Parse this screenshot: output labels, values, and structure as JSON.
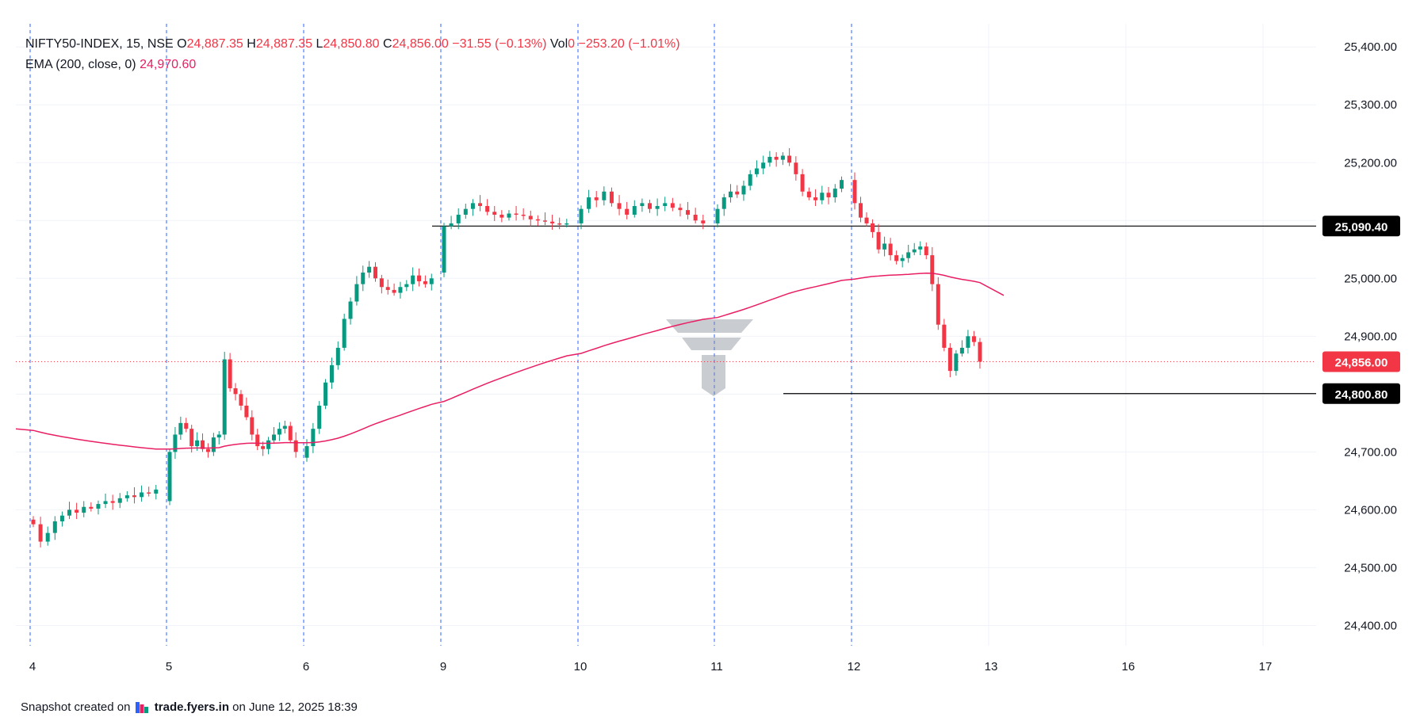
{
  "header": {
    "symbol_line": "NIFTY50-INDEX, 15, NSE",
    "open_label": "O",
    "open": "24,887.35",
    "high_label": "H",
    "high": "24,887.35",
    "low_label": "L",
    "low": "24,850.80",
    "close_label": "C",
    "close": "24,856.00",
    "change": "−31.55 (−0.13%)",
    "vol_label": "Vol",
    "vol": "0",
    "vol_change": "−253.20 (−1.01%)",
    "ema_label": "EMA (200, close, 0)",
    "ema_value": "24,970.60"
  },
  "footer": {
    "prefix": "Snapshot created on",
    "site": "trade.fyers.in",
    "suffix": "on June 12, 2025 18:39"
  },
  "colors": {
    "up": "#089981",
    "down": "#f23645",
    "ema": "#e91e63",
    "session_line": "#2962ff",
    "price_line": "#f23645",
    "level_line": "#000000"
  },
  "chart_data": {
    "type": "candlestick",
    "symbol": "NIFTY50-INDEX",
    "interval": "15",
    "exchange": "NSE",
    "x_ticks": [
      "4",
      "5",
      "6",
      "9",
      "10",
      "11",
      "12",
      "13",
      "16",
      "17"
    ],
    "y_ticks": [
      "24,400.00",
      "24,500.00",
      "24,600.00",
      "24,700.00",
      "24,800.00",
      "24,900.00",
      "25,000.00",
      "25,100.00",
      "25,200.00",
      "25,300.00",
      "25,400.00"
    ],
    "ylim": [
      24365,
      25440
    ],
    "session_days": [
      "4",
      "5",
      "6",
      "9",
      "10",
      "11",
      "12"
    ],
    "sessions": [
      {
        "day": "4",
        "open": 24583,
        "points": [
          24575,
          24545,
          24560,
          24580,
          24590,
          24600,
          24595,
          24605,
          24602,
          24610,
          24615,
          24612,
          24620,
          24625,
          24622,
          24630,
          24628,
          24635
        ]
      },
      {
        "day": "5",
        "open": 24615,
        "points": [
          24700,
          24730,
          24750,
          24740,
          24710,
          24720,
          24705,
          24700,
          24725,
          24730,
          24860,
          24810,
          24800,
          24780,
          24760,
          24730,
          24710,
          24705,
          24720,
          24730,
          24740,
          24745,
          24720,
          24700
        ]
      },
      {
        "day": "6",
        "open": 24690,
        "points": [
          24710,
          24740,
          24780,
          24820,
          24850,
          24880,
          24930,
          24960,
          24990,
          25010,
          25020,
          25000,
          24985,
          24980,
          24975,
          24985,
          24990,
          25005,
          24995,
          24990,
          25000
        ]
      },
      {
        "day": "9",
        "open": 25010,
        "points": [
          25090,
          25095,
          25110,
          25120,
          25130,
          25125,
          25115,
          25110,
          25105,
          25112,
          25110,
          25108,
          25102,
          25100,
          25098,
          25095,
          25093,
          25095
        ]
      },
      {
        "day": "10",
        "open": 25095,
        "points": [
          25120,
          25140,
          25135,
          25150,
          25130,
          25120,
          25110,
          25125,
          25130,
          25120,
          25125,
          25130,
          25122,
          25118,
          25110,
          25100,
          25095
        ]
      },
      {
        "day": "11",
        "open": 25095,
        "points": [
          25120,
          25140,
          25150,
          25145,
          25160,
          25180,
          25190,
          25200,
          25210,
          25205,
          25212,
          25200,
          25180,
          25150,
          25140,
          25135,
          25148,
          25140,
          25155,
          25170
        ]
      },
      {
        "day": "12",
        "open": 25170,
        "points": [
          25130,
          25105,
          25095,
          25080,
          25050,
          25060,
          25040,
          25030,
          25035,
          25045,
          25050,
          25055,
          25040,
          24990,
          24920,
          24880,
          24840,
          24870,
          24880,
          24900,
          24890,
          24856
        ]
      }
    ],
    "ema_series": {
      "name": "EMA (200, close, 0)",
      "last": 24970.6
    },
    "price_level": {
      "value": 24856.0,
      "label": "24,856.00"
    },
    "horizontal_lines": [
      {
        "value": 25090.4,
        "label": "25,090.40"
      },
      {
        "value": 24800.8,
        "label": "24,800.80"
      }
    ],
    "grid": true
  }
}
